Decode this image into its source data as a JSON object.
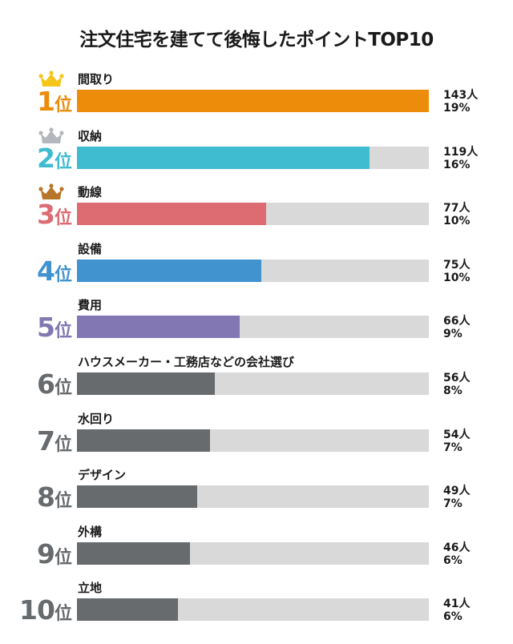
{
  "colors": {
    "gold": "#ec8c0a",
    "teal": "#3fbcd0",
    "red": "#dc6b72",
    "blue": "#4193cf",
    "purple": "#8277b2",
    "gray": "#676b6e",
    "track": "#d9d9d9",
    "crown_gold": "#f5c518",
    "crown_silver": "#b4b8bc",
    "crown_bronze": "#b8762b"
  },
  "chart_data": {
    "type": "bar",
    "orientation": "horizontal",
    "title": "注文住宅を建てて後悔したポイントTOP10",
    "rank_suffix": "位",
    "count_unit": "人",
    "xlim": [
      0,
      143
    ],
    "categories": [
      "間取り",
      "収納",
      "動線",
      "設備",
      "費用",
      "ハウスメーカー・工務店などの会社選び",
      "水回り",
      "デザイン",
      "外構",
      "立地"
    ],
    "values": [
      143,
      119,
      77,
      75,
      66,
      56,
      54,
      49,
      46,
      41
    ],
    "percents": [
      "19%",
      "16%",
      "10%",
      "10%",
      "9%",
      "8%",
      "7%",
      "7%",
      "6%",
      "6%"
    ],
    "ranks": [
      "1",
      "2",
      "3",
      "4",
      "5",
      "6",
      "7",
      "8",
      "9",
      "10"
    ],
    "bar_colors": [
      "gold",
      "teal",
      "red",
      "blue",
      "purple",
      "gray",
      "gray",
      "gray",
      "gray",
      "gray"
    ],
    "crowns": [
      "crown_gold",
      "crown_silver",
      "crown_bronze"
    ]
  }
}
